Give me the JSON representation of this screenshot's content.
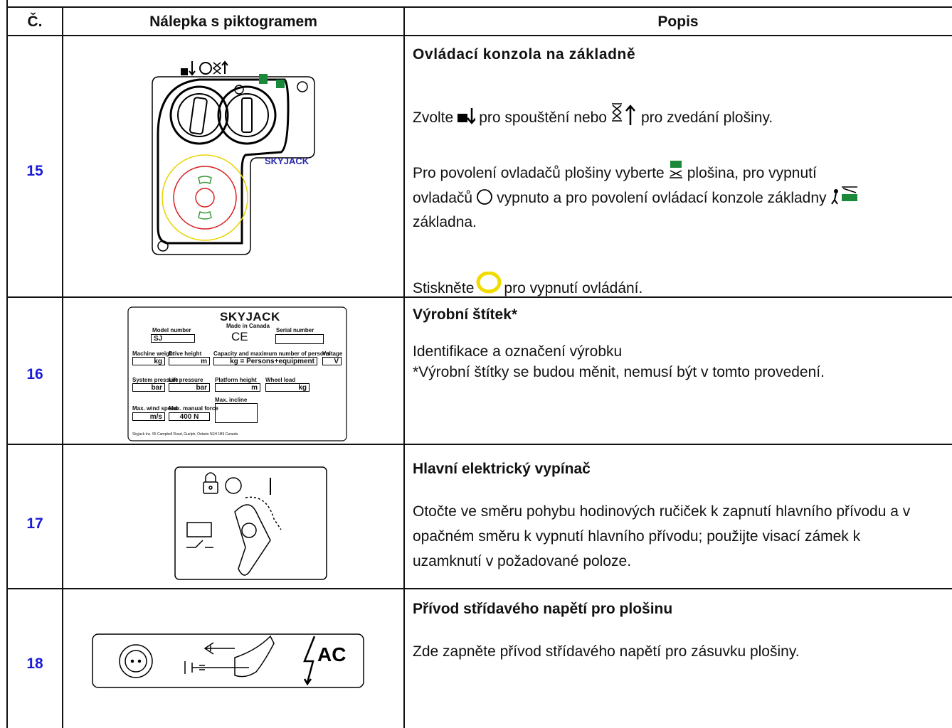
{
  "table": {
    "headers": [
      "Č.",
      "Nálepka s piktogramem",
      "Popis"
    ],
    "rows": [
      {
        "number": "15",
        "sticker": {
          "logo": "SKYJACK"
        },
        "title": "Ovládací konzola na základně",
        "paragraphs": [
          [
            "Zvolte",
            "pro spouštění nebo",
            "pro zvedání plošiny."
          ],
          [
            "Pro povolení ovladačů plošiny vyberte",
            "plošina, pro vypnutí",
            "ovladačů",
            "vypnuto a pro povolení ovládací konzole základny",
            "základna."
          ],
          [
            "Stiskněte",
            "pro vypnutí ovládání."
          ]
        ]
      },
      {
        "number": "16",
        "sticker": {
          "logo": "SKYJACK",
          "made_in": "Made in Canada",
          "ce": "CE",
          "labels": [
            "Model number",
            "Serial number",
            "Machine weight",
            "Drive height",
            "Capacity and maximum number of persons",
            "Voltage",
            "System pressure",
            "Lift pressure",
            "Platform height",
            "Wheel load",
            "Max. wind speed",
            "Max. manual force",
            "Max. incline"
          ],
          "fields": [
            "SJ",
            "kg",
            "m",
            "kg = Persons+equipment",
            "V",
            "bar",
            "bar",
            "m",
            "kg",
            "m/s",
            "400 N"
          ],
          "address": "Skyjack Inc. 55 Campbell Road, Guelph, Ontario N1H 1B9 Canada"
        },
        "title": "Výrobní štítek*",
        "paragraphs": [
          [
            "Identifikace a označení výrobku"
          ],
          [
            "*Výrobní štítky se budou měnit, nemusí být v tomto provedení."
          ]
        ]
      },
      {
        "number": "17",
        "sticker": {},
        "title": "Hlavní elektrický vypínač",
        "paragraphs": [
          [
            "Otočte ve směru pohybu hodinových ručiček k zapnutí hlavního přívodu a v opačném směru k vypnutí hlavního přívodu; použijte visací zámek k uzamknutí v požadované poloze."
          ]
        ]
      },
      {
        "number": "18",
        "sticker": {
          "label": "AC"
        },
        "title": "Přívod střídavého napětí pro plošinu",
        "paragraphs": [
          [
            "Zde zapněte přívod střídavého napětí pro zásuvku plošiny."
          ]
        ]
      }
    ]
  }
}
